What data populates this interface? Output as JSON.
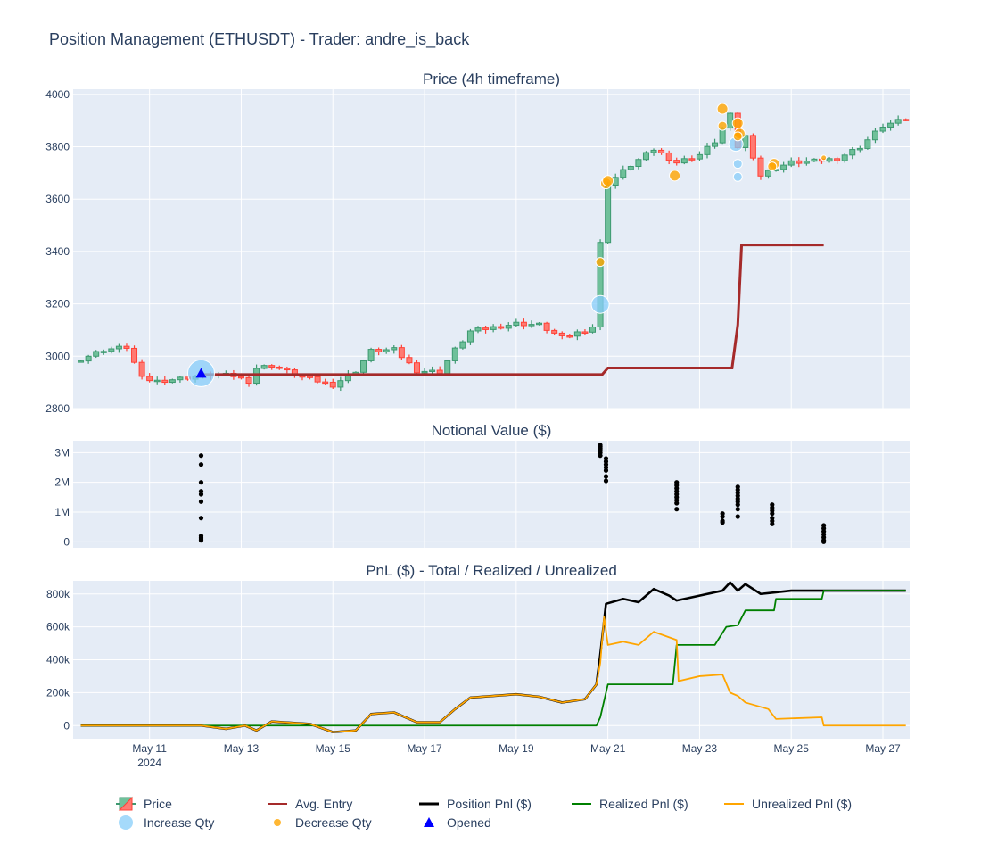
{
  "title": "Position Management (ETHUSDT) - Trader: andre_is_back",
  "colors": {
    "bg_plot": "#e5ecf6",
    "increase_candle": "#3d9970",
    "decrease_candle": "#ff4136",
    "avg_entry": "#a52a2a",
    "position_pnl": "#000000",
    "realized_pnl": "#008000",
    "unrealized_pnl": "#ffa500",
    "increase_qty": "#87cefa",
    "decrease_qty": "#ffa500",
    "opened": "#0000ff"
  },
  "chart_data": [
    {
      "type": "candlestick",
      "subtitle": "Price (4h timeframe)",
      "x_range": [
        "2024-05-09 12:00",
        "2024-05-27 12:00"
      ],
      "ylim": [
        2800,
        4020
      ],
      "y_ticks": [
        2800,
        3000,
        3200,
        3400,
        3600,
        3800,
        4000
      ],
      "x_ticks": [
        {
          "date": "2024-05-11",
          "label": "May 11",
          "sub": "2024"
        },
        {
          "date": "2024-05-13",
          "label": "May 13",
          "sub": ""
        },
        {
          "date": "2024-05-15",
          "label": "May 15",
          "sub": ""
        },
        {
          "date": "2024-05-17",
          "label": "May 17",
          "sub": ""
        },
        {
          "date": "2024-05-19",
          "label": "May 19",
          "sub": ""
        },
        {
          "date": "2024-05-21",
          "label": "May 21",
          "sub": ""
        },
        {
          "date": "2024-05-23",
          "label": "May 23",
          "sub": ""
        },
        {
          "date": "2024-05-25",
          "label": "May 25",
          "sub": ""
        },
        {
          "date": "2024-05-27",
          "label": "May 27",
          "sub": ""
        }
      ],
      "close_anchors": [
        [
          "2024-05-09 12:00",
          2990
        ],
        [
          "2024-05-10 00:00",
          3025
        ],
        [
          "2024-05-10 12:00",
          3035
        ],
        [
          "2024-05-10 20:00",
          2915
        ],
        [
          "2024-05-11 04:00",
          2905
        ],
        [
          "2024-05-11 16:00",
          2915
        ],
        [
          "2024-05-12 08:00",
          2930
        ],
        [
          "2024-05-12 20:00",
          2925
        ],
        [
          "2024-05-13 04:00",
          2905
        ],
        [
          "2024-05-13 08:00",
          2955
        ],
        [
          "2024-05-13 16:00",
          2965
        ],
        [
          "2024-05-14 04:00",
          2930
        ],
        [
          "2024-05-14 16:00",
          2905
        ],
        [
          "2024-05-15 00:00",
          2890
        ],
        [
          "2024-05-15 12:00",
          2945
        ],
        [
          "2024-05-15 20:00",
          3020
        ],
        [
          "2024-05-16 08:00",
          3025
        ],
        [
          "2024-05-16 20:00",
          2945
        ],
        [
          "2024-05-17 08:00",
          2940
        ],
        [
          "2024-05-17 16:00",
          3025
        ],
        [
          "2024-05-18 00:00",
          3095
        ],
        [
          "2024-05-18 12:00",
          3110
        ],
        [
          "2024-05-19 00:00",
          3125
        ],
        [
          "2024-05-19 12:00",
          3120
        ],
        [
          "2024-05-20 00:00",
          3070
        ],
        [
          "2024-05-20 12:00",
          3100
        ],
        [
          "2024-05-20 18:00",
          3120
        ],
        [
          "2024-05-20 20:00",
          3430
        ],
        [
          "2024-05-21 00:00",
          3660
        ],
        [
          "2024-05-21 12:00",
          3730
        ],
        [
          "2024-05-22 00:00",
          3790
        ],
        [
          "2024-05-22 12:00",
          3740
        ],
        [
          "2024-05-23 00:00",
          3770
        ],
        [
          "2024-05-23 08:00",
          3820
        ],
        [
          "2024-05-23 16:00",
          3920
        ],
        [
          "2024-05-23 20:00",
          3800
        ],
        [
          "2024-05-24 00:00",
          3840
        ],
        [
          "2024-05-24 08:00",
          3690
        ],
        [
          "2024-05-24 16:00",
          3720
        ],
        [
          "2024-05-25 00:00",
          3740
        ],
        [
          "2024-05-25 12:00",
          3745
        ],
        [
          "2024-05-26 00:00",
          3755
        ],
        [
          "2024-05-26 12:00",
          3800
        ],
        [
          "2024-05-27 00:00",
          3880
        ],
        [
          "2024-05-27 12:00",
          3905
        ]
      ],
      "avg_entry": [
        [
          "2024-05-12 03:00",
          2930
        ],
        [
          "2024-05-20 21:00",
          2930
        ],
        [
          "2024-05-21 00:00",
          2955
        ],
        [
          "2024-05-23 17:00",
          2955
        ],
        [
          "2024-05-23 20:00",
          3120
        ],
        [
          "2024-05-23 22:00",
          3425
        ],
        [
          "2024-05-25 17:00",
          3425
        ]
      ],
      "increase_qty": [
        [
          "2024-05-12 03:00",
          2935,
          15
        ],
        [
          "2024-05-20 20:00",
          3198,
          10
        ],
        [
          "2024-05-23 19:00",
          3810,
          8
        ],
        [
          "2024-05-23 20:00",
          3735,
          5
        ],
        [
          "2024-05-23 20:00",
          3685,
          5
        ]
      ],
      "decrease_qty": [
        [
          "2024-05-20 20:00",
          3360,
          5
        ],
        [
          "2024-05-20 23:00",
          3660,
          6
        ],
        [
          "2024-05-21 00:00",
          3670,
          6
        ],
        [
          "2024-05-22 11:00",
          3690,
          6
        ],
        [
          "2024-05-23 12:00",
          3945,
          6
        ],
        [
          "2024-05-23 12:00",
          3880,
          5
        ],
        [
          "2024-05-23 20:00",
          3890,
          6
        ],
        [
          "2024-05-23 21:00",
          3850,
          6
        ],
        [
          "2024-05-23 20:00",
          3840,
          5
        ],
        [
          "2024-05-24 15:00",
          3735,
          6
        ],
        [
          "2024-05-24 14:00",
          3725,
          5
        ],
        [
          "2024-05-25 17:00",
          3758,
          3
        ]
      ],
      "opened": [
        [
          "2024-05-12 03:00",
          2935
        ]
      ]
    },
    {
      "type": "scatter",
      "subtitle": "Notional Value ($)",
      "ylim": [
        -200000,
        3400000
      ],
      "y_ticks": [
        {
          "v": 0,
          "label": "0"
        },
        {
          "v": 1000000,
          "label": "1M"
        },
        {
          "v": 2000000,
          "label": "2M"
        },
        {
          "v": 3000000,
          "label": "3M"
        }
      ],
      "points": [
        {
          "x": "2024-05-12 03:00",
          "y": [
            2900000,
            2600000,
            2000000,
            1700000,
            1600000,
            1350000,
            800000,
            200000,
            150000,
            100000,
            50000
          ]
        },
        {
          "x": "2024-05-20 20:00",
          "y": [
            3250000,
            3200000,
            3150000,
            3100000,
            3000000,
            2900000
          ]
        },
        {
          "x": "2024-05-20 23:00",
          "y": [
            2800000,
            2700000,
            2600000,
            2500000,
            2400000,
            2200000,
            2050000
          ]
        },
        {
          "x": "2024-05-22 12:00",
          "y": [
            2000000,
            1900000,
            1800000,
            1700000,
            1600000,
            1500000,
            1400000,
            1300000,
            1100000
          ]
        },
        {
          "x": "2024-05-23 12:00",
          "y": [
            950000,
            850000,
            700000,
            650000
          ]
        },
        {
          "x": "2024-05-23 20:00",
          "y": [
            1850000,
            1750000,
            1650000,
            1550000,
            1450000,
            1350000,
            1250000,
            1100000,
            850000
          ]
        },
        {
          "x": "2024-05-24 14:00",
          "y": [
            1250000,
            1150000,
            1050000,
            950000,
            800000,
            700000,
            600000
          ]
        },
        {
          "x": "2024-05-25 17:00",
          "y": [
            550000,
            450000,
            350000,
            250000,
            150000,
            50000,
            0
          ]
        }
      ]
    },
    {
      "type": "line",
      "subtitle": "PnL ($) - Total / Realized / Unrealized",
      "ylim": [
        -80000,
        880000
      ],
      "y_ticks": [
        {
          "v": 0,
          "label": "0"
        },
        {
          "v": 200000,
          "label": "200k"
        },
        {
          "v": 400000,
          "label": "400k"
        },
        {
          "v": 600000,
          "label": "600k"
        },
        {
          "v": 800000,
          "label": "800k"
        }
      ],
      "series": [
        {
          "key": "position_pnl",
          "points": [
            [
              "2024-05-09 12:00",
              0
            ],
            [
              "2024-05-12 03:00",
              0
            ],
            [
              "2024-05-12 16:00",
              -20000
            ],
            [
              "2024-05-13 02:00",
              0
            ],
            [
              "2024-05-13 08:00",
              -30000
            ],
            [
              "2024-05-13 16:00",
              25000
            ],
            [
              "2024-05-14 12:00",
              10000
            ],
            [
              "2024-05-15 00:00",
              -40000
            ],
            [
              "2024-05-15 12:00",
              -30000
            ],
            [
              "2024-05-15 20:00",
              70000
            ],
            [
              "2024-05-16 08:00",
              80000
            ],
            [
              "2024-05-16 20:00",
              20000
            ],
            [
              "2024-05-17 08:00",
              20000
            ],
            [
              "2024-05-17 16:00",
              100000
            ],
            [
              "2024-05-18 00:00",
              170000
            ],
            [
              "2024-05-18 12:00",
              180000
            ],
            [
              "2024-05-19 00:00",
              190000
            ],
            [
              "2024-05-19 12:00",
              175000
            ],
            [
              "2024-05-20 00:00",
              140000
            ],
            [
              "2024-05-20 12:00",
              160000
            ],
            [
              "2024-05-20 18:00",
              250000
            ],
            [
              "2024-05-20 20:00",
              430000
            ],
            [
              "2024-05-20 23:00",
              740000
            ],
            [
              "2024-05-21 08:00",
              770000
            ],
            [
              "2024-05-21 16:00",
              750000
            ],
            [
              "2024-05-22 00:00",
              830000
            ],
            [
              "2024-05-22 08:00",
              790000
            ],
            [
              "2024-05-22 12:00",
              760000
            ],
            [
              "2024-05-23 00:00",
              790000
            ],
            [
              "2024-05-23 12:00",
              820000
            ],
            [
              "2024-05-23 16:00",
              870000
            ],
            [
              "2024-05-23 20:00",
              820000
            ],
            [
              "2024-05-24 00:00",
              860000
            ],
            [
              "2024-05-24 08:00",
              800000
            ],
            [
              "2024-05-24 16:00",
              810000
            ],
            [
              "2024-05-25 00:00",
              820000
            ],
            [
              "2024-05-25 17:00",
              820000
            ],
            [
              "2024-05-27 12:00",
              820000
            ]
          ]
        },
        {
          "key": "realized_pnl",
          "points": [
            [
              "2024-05-09 12:00",
              0
            ],
            [
              "2024-05-20 18:00",
              0
            ],
            [
              "2024-05-20 20:00",
              50000
            ],
            [
              "2024-05-21 00:00",
              250000
            ],
            [
              "2024-05-22 10:00",
              250000
            ],
            [
              "2024-05-22 12:00",
              490000
            ],
            [
              "2024-05-23 08:00",
              490000
            ],
            [
              "2024-05-23 14:00",
              600000
            ],
            [
              "2024-05-23 20:00",
              610000
            ],
            [
              "2024-05-24 00:00",
              700000
            ],
            [
              "2024-05-24 15:00",
              700000
            ],
            [
              "2024-05-24 16:00",
              770000
            ],
            [
              "2024-05-25 16:00",
              770000
            ],
            [
              "2024-05-25 17:00",
              820000
            ],
            [
              "2024-05-27 12:00",
              820000
            ]
          ]
        },
        {
          "key": "unrealized_pnl",
          "points": [
            [
              "2024-05-09 12:00",
              0
            ],
            [
              "2024-05-12 03:00",
              0
            ],
            [
              "2024-05-12 16:00",
              -20000
            ],
            [
              "2024-05-13 02:00",
              0
            ],
            [
              "2024-05-13 08:00",
              -30000
            ],
            [
              "2024-05-13 16:00",
              25000
            ],
            [
              "2024-05-14 12:00",
              10000
            ],
            [
              "2024-05-15 00:00",
              -40000
            ],
            [
              "2024-05-15 12:00",
              -30000
            ],
            [
              "2024-05-15 20:00",
              70000
            ],
            [
              "2024-05-16 08:00",
              80000
            ],
            [
              "2024-05-16 20:00",
              20000
            ],
            [
              "2024-05-17 08:00",
              20000
            ],
            [
              "2024-05-17 16:00",
              100000
            ],
            [
              "2024-05-18 00:00",
              170000
            ],
            [
              "2024-05-18 12:00",
              180000
            ],
            [
              "2024-05-19 00:00",
              190000
            ],
            [
              "2024-05-19 12:00",
              175000
            ],
            [
              "2024-05-20 00:00",
              140000
            ],
            [
              "2024-05-20 12:00",
              160000
            ],
            [
              "2024-05-20 18:00",
              250000
            ],
            [
              "2024-05-20 20:00",
              380000
            ],
            [
              "2024-05-20 22:00",
              660000
            ],
            [
              "2024-05-21 00:00",
              490000
            ],
            [
              "2024-05-21 08:00",
              510000
            ],
            [
              "2024-05-21 16:00",
              490000
            ],
            [
              "2024-05-22 00:00",
              570000
            ],
            [
              "2024-05-22 12:00",
              520000
            ],
            [
              "2024-05-22 13:00",
              270000
            ],
            [
              "2024-05-23 00:00",
              300000
            ],
            [
              "2024-05-23 12:00",
              310000
            ],
            [
              "2024-05-23 16:00",
              200000
            ],
            [
              "2024-05-23 20:00",
              180000
            ],
            [
              "2024-05-24 00:00",
              140000
            ],
            [
              "2024-05-24 12:00",
              100000
            ],
            [
              "2024-05-24 16:00",
              40000
            ],
            [
              "2024-05-25 16:00",
              50000
            ],
            [
              "2024-05-25 17:00",
              0
            ],
            [
              "2024-05-27 12:00",
              0
            ]
          ]
        }
      ]
    }
  ],
  "legend": [
    {
      "key": "price",
      "label": "Price"
    },
    {
      "key": "avg_entry",
      "label": "Avg. Entry"
    },
    {
      "key": "position_pnl",
      "label": "Position Pnl ($)"
    },
    {
      "key": "realized_pnl",
      "label": "Realized Pnl ($)"
    },
    {
      "key": "unrealized_pnl",
      "label": "Unrealized Pnl ($)"
    },
    {
      "key": "increase_qty",
      "label": "Increase Qty"
    },
    {
      "key": "decrease_qty",
      "label": "Decrease Qty"
    },
    {
      "key": "opened",
      "label": "Opened"
    }
  ]
}
